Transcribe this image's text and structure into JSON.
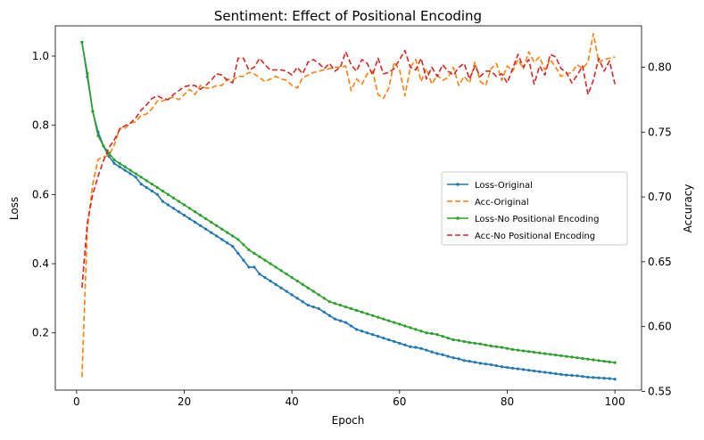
{
  "chart_data": {
    "type": "line",
    "title": "Sentiment: Effect of Positional Encoding",
    "xlabel": "Epoch",
    "ylabel_left": "Loss",
    "ylabel_right": "Accuracy",
    "xlim": [
      -3.95,
      104.95
    ],
    "ylim_left": [
      0.0345,
      1.0875
    ],
    "ylim_right": [
      0.551,
      0.832
    ],
    "xticks": [
      0,
      20,
      40,
      60,
      80,
      100
    ],
    "yticks_left": [
      0.2,
      0.4,
      0.6,
      0.8,
      1.0
    ],
    "yticks_right": [
      0.55,
      0.6,
      0.65,
      0.7,
      0.75,
      0.8
    ],
    "grid": false,
    "legend_position": "center-right",
    "x": [
      1,
      2,
      3,
      4,
      5,
      6,
      7,
      8,
      9,
      10,
      11,
      12,
      13,
      14,
      15,
      16,
      17,
      18,
      19,
      20,
      21,
      22,
      23,
      24,
      25,
      26,
      27,
      28,
      29,
      30,
      31,
      32,
      33,
      34,
      35,
      36,
      37,
      38,
      39,
      40,
      41,
      42,
      43,
      44,
      45,
      46,
      47,
      48,
      49,
      50,
      51,
      52,
      53,
      54,
      55,
      56,
      57,
      58,
      59,
      60,
      61,
      62,
      63,
      64,
      65,
      66,
      67,
      68,
      69,
      70,
      71,
      72,
      73,
      74,
      75,
      76,
      77,
      78,
      79,
      80,
      81,
      82,
      83,
      84,
      85,
      86,
      87,
      88,
      89,
      90,
      91,
      92,
      93,
      94,
      95,
      96,
      97,
      98,
      99,
      100
    ],
    "series": [
      {
        "name": "Loss-Original",
        "axis": "left",
        "color": "#1f77b4",
        "dash": "solid",
        "marker": true,
        "values": [
          1.04,
          0.94,
          0.84,
          0.78,
          0.74,
          0.71,
          0.69,
          0.68,
          0.67,
          0.66,
          0.65,
          0.63,
          0.62,
          0.61,
          0.6,
          0.58,
          0.57,
          0.56,
          0.55,
          0.54,
          0.53,
          0.52,
          0.51,
          0.5,
          0.49,
          0.48,
          0.47,
          0.46,
          0.45,
          0.43,
          0.41,
          0.39,
          0.39,
          0.37,
          0.36,
          0.35,
          0.34,
          0.33,
          0.32,
          0.31,
          0.3,
          0.29,
          0.28,
          0.275,
          0.27,
          0.26,
          0.25,
          0.24,
          0.235,
          0.23,
          0.22,
          0.21,
          0.205,
          0.2,
          0.195,
          0.19,
          0.185,
          0.18,
          0.175,
          0.17,
          0.165,
          0.16,
          0.158,
          0.155,
          0.15,
          0.145,
          0.14,
          0.137,
          0.132,
          0.128,
          0.125,
          0.12,
          0.118,
          0.115,
          0.112,
          0.11,
          0.108,
          0.105,
          0.102,
          0.1,
          0.098,
          0.096,
          0.094,
          0.092,
          0.09,
          0.088,
          0.086,
          0.084,
          0.082,
          0.08,
          0.078,
          0.077,
          0.076,
          0.074,
          0.072,
          0.071,
          0.07,
          0.069,
          0.068,
          0.066
        ]
      },
      {
        "name": "Acc-Original",
        "axis": "right",
        "color": "#ff7f0e",
        "dash": "dashed",
        "marker": false,
        "values": [
          0.561,
          0.676,
          0.71,
          0.729,
          0.731,
          0.732,
          0.74,
          0.753,
          0.753,
          0.757,
          0.758,
          0.763,
          0.764,
          0.768,
          0.774,
          0.774,
          0.776,
          0.777,
          0.775,
          0.779,
          0.783,
          0.779,
          0.786,
          0.784,
          0.784,
          0.786,
          0.786,
          0.791,
          0.79,
          0.793,
          0.793,
          0.796,
          0.795,
          0.792,
          0.789,
          0.791,
          0.793,
          0.791,
          0.79,
          0.786,
          0.784,
          0.792,
          0.794,
          0.796,
          0.797,
          0.798,
          0.799,
          0.8,
          0.8,
          0.801,
          0.782,
          0.791,
          0.787,
          0.795,
          0.797,
          0.779,
          0.776,
          0.784,
          0.804,
          0.798,
          0.778,
          0.8,
          0.806,
          0.789,
          0.799,
          0.787,
          0.794,
          0.79,
          0.792,
          0.8,
          0.786,
          0.793,
          0.788,
          0.804,
          0.789,
          0.786,
          0.799,
          0.803,
          0.79,
          0.801,
          0.797,
          0.806,
          0.799,
          0.812,
          0.804,
          0.808,
          0.798,
          0.806,
          0.8,
          0.793,
          0.795,
          0.796,
          0.802,
          0.799,
          0.804,
          0.826,
          0.804,
          0.806,
          0.807,
          0.808
        ]
      },
      {
        "name": "Loss-No Positional Encoding",
        "axis": "left",
        "color": "#2ca02c",
        "dash": "solid",
        "marker": true,
        "values": [
          1.04,
          0.95,
          0.84,
          0.77,
          0.74,
          0.72,
          0.7,
          0.69,
          0.68,
          0.67,
          0.66,
          0.65,
          0.64,
          0.63,
          0.62,
          0.61,
          0.6,
          0.59,
          0.58,
          0.57,
          0.56,
          0.55,
          0.54,
          0.53,
          0.52,
          0.51,
          0.5,
          0.49,
          0.48,
          0.47,
          0.455,
          0.44,
          0.43,
          0.42,
          0.41,
          0.4,
          0.39,
          0.38,
          0.37,
          0.36,
          0.35,
          0.34,
          0.33,
          0.32,
          0.31,
          0.3,
          0.29,
          0.285,
          0.28,
          0.275,
          0.27,
          0.265,
          0.26,
          0.255,
          0.25,
          0.245,
          0.24,
          0.235,
          0.23,
          0.225,
          0.22,
          0.215,
          0.21,
          0.205,
          0.2,
          0.198,
          0.195,
          0.19,
          0.185,
          0.18,
          0.178,
          0.175,
          0.172,
          0.17,
          0.168,
          0.165,
          0.162,
          0.16,
          0.158,
          0.155,
          0.152,
          0.15,
          0.148,
          0.146,
          0.144,
          0.142,
          0.14,
          0.138,
          0.136,
          0.134,
          0.132,
          0.13,
          0.128,
          0.126,
          0.124,
          0.122,
          0.12,
          0.118,
          0.116,
          0.114
        ]
      },
      {
        "name": "Acc-No Positional Encoding",
        "axis": "right",
        "color": "#d62728",
        "dash": "dashed",
        "marker": false,
        "values": [
          0.63,
          0.68,
          0.702,
          0.716,
          0.728,
          0.738,
          0.744,
          0.752,
          0.755,
          0.757,
          0.761,
          0.767,
          0.771,
          0.776,
          0.778,
          0.776,
          0.775,
          0.779,
          0.782,
          0.785,
          0.786,
          0.786,
          0.783,
          0.786,
          0.79,
          0.795,
          0.794,
          0.79,
          0.788,
          0.807,
          0.807,
          0.798,
          0.8,
          0.807,
          0.802,
          0.798,
          0.798,
          0.798,
          0.797,
          0.794,
          0.8,
          0.795,
          0.804,
          0.806,
          0.803,
          0.799,
          0.803,
          0.797,
          0.8,
          0.812,
          0.802,
          0.797,
          0.806,
          0.803,
          0.794,
          0.807,
          0.795,
          0.796,
          0.799,
          0.806,
          0.813,
          0.8,
          0.798,
          0.807,
          0.791,
          0.8,
          0.793,
          0.802,
          0.797,
          0.794,
          0.8,
          0.803,
          0.791,
          0.801,
          0.793,
          0.797,
          0.797,
          0.793,
          0.795,
          0.788,
          0.799,
          0.81,
          0.8,
          0.806,
          0.787,
          0.801,
          0.794,
          0.81,
          0.808,
          0.799,
          0.796,
          0.788,
          0.794,
          0.801,
          0.779,
          0.79,
          0.807,
          0.797,
          0.805,
          0.787
        ]
      }
    ]
  }
}
